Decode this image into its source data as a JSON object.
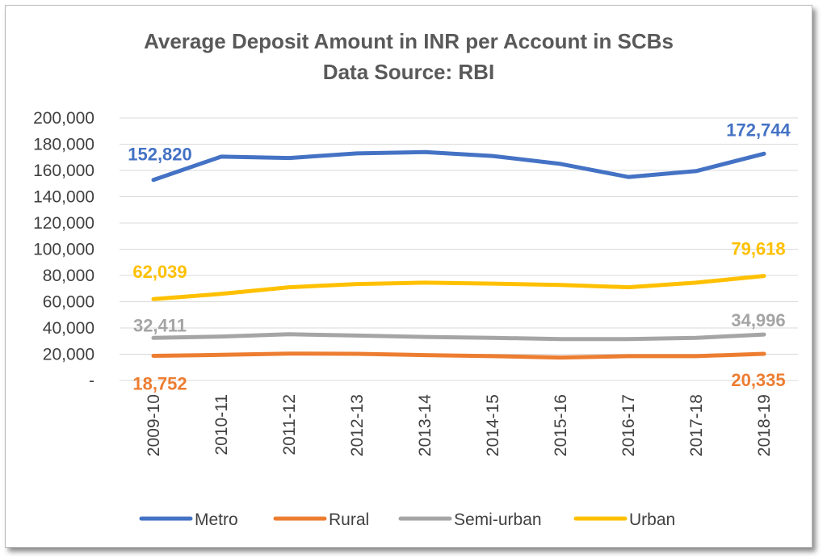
{
  "chart_data": {
    "type": "line",
    "title": "Average Deposit Amount in INR per Account in SCBs",
    "subtitle": "Data Source: RBI",
    "xlabel": "",
    "ylabel": "",
    "ylim": [
      0,
      200000
    ],
    "yticks": [
      0,
      20000,
      40000,
      60000,
      80000,
      100000,
      120000,
      140000,
      160000,
      180000,
      200000
    ],
    "ytick_labels": [
      "-",
      "20,000",
      "40,000",
      "60,000",
      "80,000",
      "100,000",
      "120,000",
      "140,000",
      "160,000",
      "180,000",
      "200,000"
    ],
    "categories": [
      "2009-10",
      "2010-11",
      "2011-12",
      "2012-13",
      "2013-14",
      "2014-15",
      "2015-16",
      "2016-17",
      "2017-18",
      "2018-19"
    ],
    "grid": true,
    "legend": "bottom",
    "series": [
      {
        "name": "Metro",
        "color": "#4472C4",
        "values": [
          152820,
          170500,
          169500,
          173000,
          174000,
          171000,
          165000,
          155000,
          159500,
          172744
        ],
        "first_label": "152,820",
        "last_label": "172,744"
      },
      {
        "name": "Rural",
        "color": "#ED7D31",
        "values": [
          18752,
          19500,
          20500,
          20300,
          19300,
          18500,
          17500,
          18500,
          18500,
          20335
        ],
        "first_label": "18,752",
        "last_label": "20,335"
      },
      {
        "name": "Semi-urban",
        "color": "#A5A5A5",
        "values": [
          32411,
          33500,
          35200,
          34200,
          33200,
          32500,
          31500,
          31500,
          32500,
          34996
        ],
        "first_label": "32,411",
        "last_label": "34,996"
      },
      {
        "name": "Urban",
        "color": "#FFC000",
        "values": [
          62039,
          66000,
          71000,
          73500,
          74500,
          73800,
          72800,
          71000,
          74500,
          79618
        ],
        "first_label": "62,039",
        "last_label": "79,618"
      }
    ]
  }
}
